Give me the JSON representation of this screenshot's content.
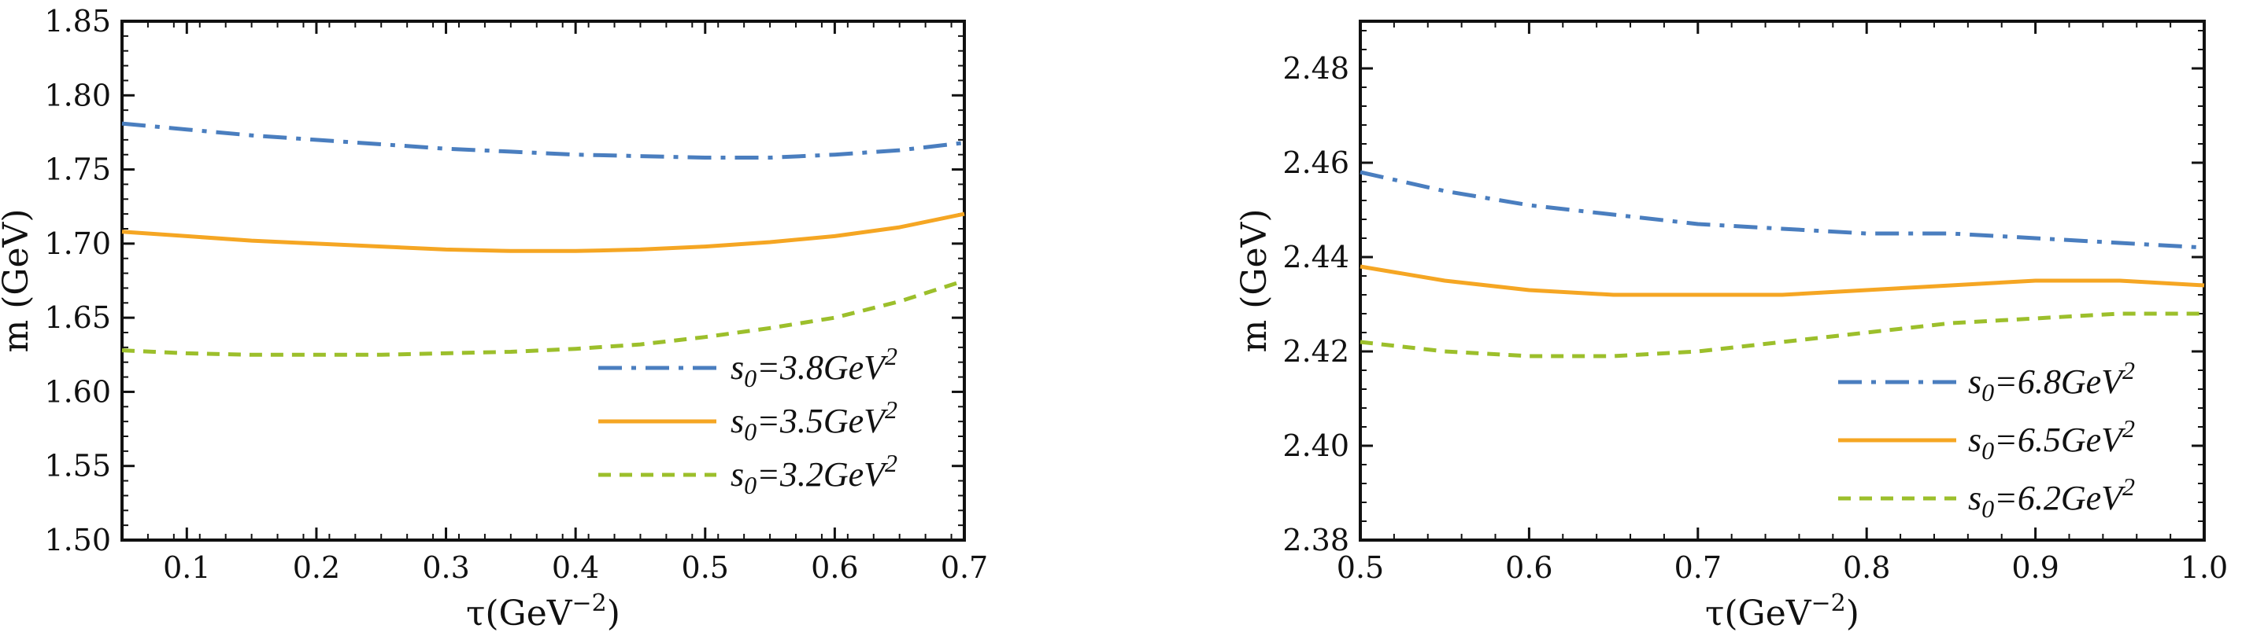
{
  "colors": {
    "blue_dashdot": "#4a7ebf",
    "orange_solid": "#f5a623",
    "green_dashed": "#9cbf2b",
    "frame": "#111111"
  },
  "chart_data": [
    {
      "type": "line",
      "title": "",
      "xlabel_main": "τ(GeV",
      "xlabel_sup": "−2",
      "xlabel_tail": ")",
      "ylabel": "m (GeV)",
      "xlim": [
        0.05,
        0.7
      ],
      "ylim": [
        1.5,
        1.85
      ],
      "x_ticks": [
        0.1,
        0.2,
        0.3,
        0.4,
        0.5,
        0.6,
        0.7
      ],
      "x_tick_labels": [
        "0.1",
        "0.2",
        "0.3",
        "0.4",
        "0.5",
        "0.6",
        "0.7"
      ],
      "y_ticks": [
        1.5,
        1.55,
        1.6,
        1.65,
        1.7,
        1.75,
        1.8,
        1.85
      ],
      "y_tick_labels": [
        "1.50",
        "1.55",
        "1.60",
        "1.65",
        "1.70",
        "1.75",
        "1.80",
        "1.85"
      ],
      "grid": false,
      "legend_position": "bottom-right",
      "series": [
        {
          "name": "s0=3.8GeV2",
          "label_base": "s",
          "label_sub": "0",
          "label_mid": "=3.8GeV",
          "label_sup": "2",
          "style": "dashdot",
          "color": "#4a7ebf",
          "x": [
            0.05,
            0.1,
            0.15,
            0.2,
            0.25,
            0.3,
            0.35,
            0.4,
            0.45,
            0.5,
            0.55,
            0.6,
            0.65,
            0.7
          ],
          "y": [
            1.781,
            1.777,
            1.773,
            1.77,
            1.767,
            1.764,
            1.762,
            1.76,
            1.759,
            1.758,
            1.758,
            1.76,
            1.763,
            1.768
          ]
        },
        {
          "name": "s0=3.5GeV2",
          "label_base": "s",
          "label_sub": "0",
          "label_mid": "=3.5GeV",
          "label_sup": "2",
          "style": "solid",
          "color": "#f5a623",
          "x": [
            0.05,
            0.1,
            0.15,
            0.2,
            0.25,
            0.3,
            0.35,
            0.4,
            0.45,
            0.5,
            0.55,
            0.6,
            0.65,
            0.7
          ],
          "y": [
            1.708,
            1.705,
            1.702,
            1.7,
            1.698,
            1.696,
            1.695,
            1.695,
            1.696,
            1.698,
            1.701,
            1.705,
            1.711,
            1.72
          ]
        },
        {
          "name": "s0=3.2GeV2",
          "label_base": "s",
          "label_sub": "0",
          "label_mid": "=3.2GeV",
          "label_sup": "2",
          "style": "dashed",
          "color": "#9cbf2b",
          "x": [
            0.05,
            0.1,
            0.15,
            0.2,
            0.25,
            0.3,
            0.35,
            0.4,
            0.45,
            0.5,
            0.55,
            0.6,
            0.65,
            0.7
          ],
          "y": [
            1.628,
            1.626,
            1.625,
            1.625,
            1.625,
            1.626,
            1.627,
            1.629,
            1.632,
            1.637,
            1.643,
            1.65,
            1.661,
            1.675
          ]
        }
      ]
    },
    {
      "type": "line",
      "title": "",
      "xlabel_main": "τ(GeV",
      "xlabel_sup": "−2",
      "xlabel_tail": ")",
      "ylabel": "m (GeV)",
      "xlim": [
        0.5,
        1.0
      ],
      "ylim": [
        2.38,
        2.49
      ],
      "x_ticks": [
        0.5,
        0.6,
        0.7,
        0.8,
        0.9,
        1.0
      ],
      "x_tick_labels": [
        "0.5",
        "0.6",
        "0.7",
        "0.8",
        "0.9",
        "1.0"
      ],
      "y_ticks": [
        2.38,
        2.4,
        2.42,
        2.44,
        2.46,
        2.48
      ],
      "y_tick_labels": [
        "2.38",
        "2.40",
        "2.42",
        "2.44",
        "2.46",
        "2.48"
      ],
      "grid": false,
      "legend_position": "bottom-right",
      "series": [
        {
          "name": "s0=6.8GeV2",
          "label_base": "s",
          "label_sub": "0",
          "label_mid": "=6.8GeV",
          "label_sup": "2",
          "style": "dashdot",
          "color": "#4a7ebf",
          "x": [
            0.5,
            0.55,
            0.6,
            0.65,
            0.7,
            0.75,
            0.8,
            0.85,
            0.9,
            0.95,
            1.0
          ],
          "y": [
            2.458,
            2.454,
            2.451,
            2.449,
            2.447,
            2.446,
            2.445,
            2.445,
            2.444,
            2.443,
            2.442
          ]
        },
        {
          "name": "s0=6.5GeV2",
          "label_base": "s",
          "label_sub": "0",
          "label_mid": "=6.5GeV",
          "label_sup": "2",
          "style": "solid",
          "color": "#f5a623",
          "x": [
            0.5,
            0.55,
            0.6,
            0.65,
            0.7,
            0.75,
            0.8,
            0.85,
            0.9,
            0.95,
            1.0
          ],
          "y": [
            2.438,
            2.435,
            2.433,
            2.432,
            2.432,
            2.432,
            2.433,
            2.434,
            2.435,
            2.435,
            2.434
          ]
        },
        {
          "name": "s0=6.2GeV2",
          "label_base": "s",
          "label_sub": "0",
          "label_mid": "=6.2GeV",
          "label_sup": "2",
          "style": "dashed",
          "color": "#9cbf2b",
          "x": [
            0.5,
            0.55,
            0.6,
            0.65,
            0.7,
            0.75,
            0.8,
            0.85,
            0.9,
            0.95,
            1.0
          ],
          "y": [
            2.422,
            2.42,
            2.419,
            2.419,
            2.42,
            2.422,
            2.424,
            2.426,
            2.427,
            2.428,
            2.428
          ]
        }
      ]
    }
  ]
}
